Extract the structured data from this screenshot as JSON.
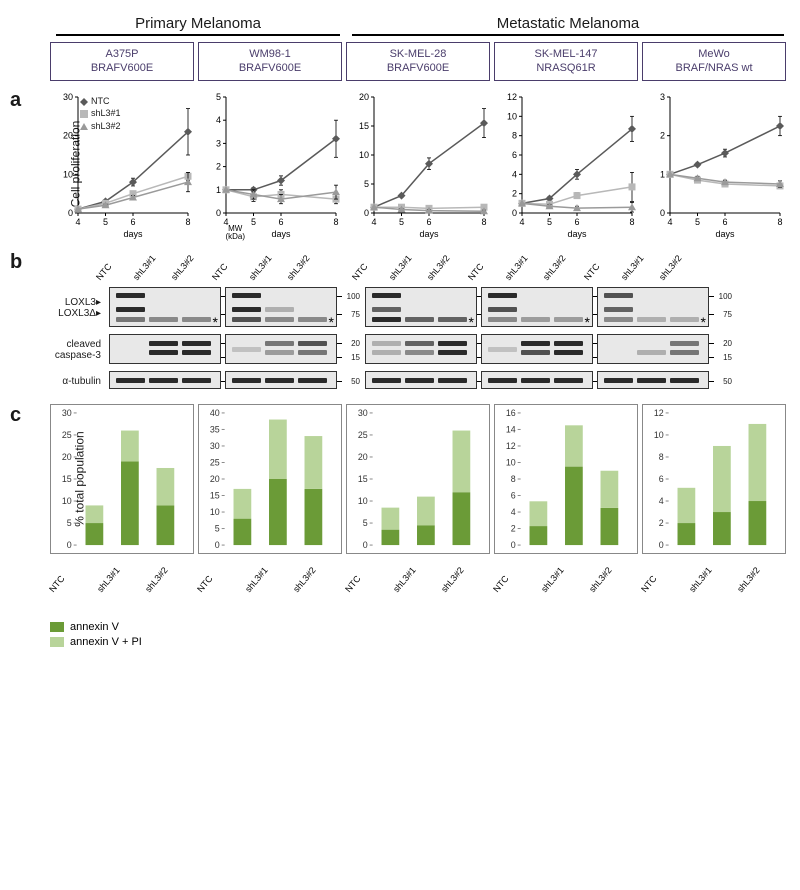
{
  "headers": {
    "primary": "Primary Melanoma",
    "metastatic": "Metastatic  Melanoma"
  },
  "cell_lines": [
    {
      "name": "A375P",
      "mutation": "BRAFV600E"
    },
    {
      "name": "WM98-1",
      "mutation": "BRAFV600E"
    },
    {
      "name": "SK-MEL-28",
      "mutation": "BRAFV600E"
    },
    {
      "name": "SK-MEL-147",
      "mutation": "NRASQ61R"
    },
    {
      "name": "MeWo",
      "mutation": "BRAF/NRAS wt"
    }
  ],
  "panel_a": {
    "label": "a",
    "ylabel": "Cell proliferation",
    "xlabel": "days",
    "legend": [
      {
        "label": "NTC",
        "marker": "diamond",
        "color": "#5a5a5a"
      },
      {
        "label": "shL3#1",
        "marker": "square",
        "color": "#b8b8b8"
      },
      {
        "label": "shL3#2",
        "marker": "triangle",
        "color": "#9a9a9a"
      }
    ],
    "x_values": [
      4,
      5,
      6,
      8
    ],
    "charts": [
      {
        "ylim": [
          0,
          30
        ],
        "yticks": [
          0,
          10,
          20,
          30
        ],
        "series": [
          {
            "color": "#5a5a5a",
            "marker": "diamond",
            "y": [
              1,
              3,
              8,
              21
            ],
            "err": [
              0,
              0.5,
              1,
              6
            ]
          },
          {
            "color": "#b8b8b8",
            "marker": "square",
            "y": [
              1,
              2.5,
              5,
              9.5
            ],
            "err": [
              0,
              0.3,
              0.5,
              1
            ]
          },
          {
            "color": "#9a9a9a",
            "marker": "triangle",
            "y": [
              1,
              2,
              4,
              8
            ],
            "err": [
              0,
              0.3,
              0.5,
              2.5
            ]
          }
        ]
      },
      {
        "ylim": [
          0,
          5
        ],
        "yticks": [
          0,
          1,
          2,
          3,
          4,
          5
        ],
        "series": [
          {
            "color": "#5a5a5a",
            "marker": "diamond",
            "y": [
              1,
              1,
              1.4,
              3.2
            ],
            "err": [
              0,
              0.1,
              0.2,
              0.8
            ]
          },
          {
            "color": "#b8b8b8",
            "marker": "square",
            "y": [
              1,
              0.7,
              0.8,
              0.6
            ],
            "err": [
              0,
              0.2,
              0.2,
              0.2
            ]
          },
          {
            "color": "#9a9a9a",
            "marker": "triangle",
            "y": [
              1,
              0.8,
              0.6,
              0.9
            ],
            "err": [
              0,
              0.2,
              0.2,
              0.3
            ]
          }
        ]
      },
      {
        "ylim": [
          0,
          20
        ],
        "yticks": [
          0,
          5,
          10,
          15,
          20
        ],
        "series": [
          {
            "color": "#5a5a5a",
            "marker": "diamond",
            "y": [
              1,
              3,
              8.5,
              15.5
            ],
            "err": [
              0,
              0.3,
              1,
              2.5
            ]
          },
          {
            "color": "#b8b8b8",
            "marker": "square",
            "y": [
              1,
              1,
              0.8,
              1
            ],
            "err": [
              0,
              0.2,
              0.2,
              0.3
            ]
          },
          {
            "color": "#9a9a9a",
            "marker": "triangle",
            "y": [
              1,
              0.6,
              0.4,
              0.3
            ],
            "err": [
              0,
              0.2,
              0.2,
              0.2
            ]
          }
        ]
      },
      {
        "ylim": [
          0,
          12
        ],
        "yticks": [
          0,
          2,
          4,
          6,
          8,
          10,
          12
        ],
        "series": [
          {
            "color": "#5a5a5a",
            "marker": "diamond",
            "y": [
              1,
              1.5,
              4,
              8.7
            ],
            "err": [
              0,
              0.2,
              0.5,
              1.3
            ]
          },
          {
            "color": "#b8b8b8",
            "marker": "square",
            "y": [
              1,
              0.9,
              1.8,
              2.7
            ],
            "err": [
              0,
              0.2,
              0.3,
              1.5
            ]
          },
          {
            "color": "#9a9a9a",
            "marker": "triangle",
            "y": [
              1,
              0.7,
              0.5,
              0.6
            ],
            "err": [
              0,
              0.2,
              0.2,
              0.5
            ]
          }
        ]
      },
      {
        "ylim": [
          0,
          3
        ],
        "yticks": [
          0,
          1,
          2,
          3
        ],
        "series": [
          {
            "color": "#5a5a5a",
            "marker": "diamond",
            "y": [
              1,
              1.25,
              1.55,
              2.25
            ],
            "err": [
              0,
              0.05,
              0.1,
              0.25
            ]
          },
          {
            "color": "#b8b8b8",
            "marker": "square",
            "y": [
              1,
              0.85,
              0.75,
              0.7
            ],
            "err": [
              0,
              0.05,
              0.05,
              0.05
            ]
          },
          {
            "color": "#9a9a9a",
            "marker": "triangle",
            "y": [
              1,
              0.9,
              0.8,
              0.75
            ],
            "err": [
              0,
              0.05,
              0.05,
              0.08
            ]
          }
        ]
      }
    ]
  },
  "panel_b": {
    "label": "b",
    "lane_labels": [
      "NTC",
      "shL3#1",
      "shL3#2"
    ],
    "mw_title": "MW\n(kDa)",
    "proteins": [
      {
        "label": "LOXL3▸\nLOXL3Δ▸",
        "height": 40,
        "mw": [
          "100",
          "75"
        ],
        "mw_pos": [
          8,
          26
        ]
      },
      {
        "label": "cleaved\ncaspase-3",
        "height": 30,
        "mw": [
          "20",
          "15"
        ],
        "mw_pos": [
          8,
          22
        ]
      },
      {
        "label": "α-tubulin",
        "height": 18,
        "mw": [
          "50"
        ],
        "mw_pos": [
          9
        ]
      }
    ],
    "asterisk": "*",
    "blots": [
      {
        "loxl3": [
          {
            "l": 0,
            "h": 0.2,
            "i": 1
          },
          {
            "l": 0,
            "h": 0.55,
            "i": 1
          },
          {
            "l": 0,
            "h": 0.82,
            "i": 0.6
          },
          {
            "l": 1,
            "h": 0.82,
            "i": 0.5
          },
          {
            "l": 2,
            "h": 0.82,
            "i": 0.5
          }
        ],
        "casp3": [
          {
            "l": 1,
            "h": 0.3,
            "i": 1
          },
          {
            "l": 1,
            "h": 0.6,
            "i": 1
          },
          {
            "l": 2,
            "h": 0.3,
            "i": 1
          },
          {
            "l": 2,
            "h": 0.6,
            "i": 1
          }
        ],
        "tub": [
          {
            "l": 0,
            "h": 0.5,
            "i": 1
          },
          {
            "l": 1,
            "h": 0.5,
            "i": 1
          },
          {
            "l": 2,
            "h": 0.5,
            "i": 1
          }
        ]
      },
      {
        "loxl3": [
          {
            "l": 0,
            "h": 0.2,
            "i": 1
          },
          {
            "l": 0,
            "h": 0.55,
            "i": 1
          },
          {
            "l": 0,
            "h": 0.82,
            "i": 0.8
          },
          {
            "l": 1,
            "h": 0.55,
            "i": 0.3
          },
          {
            "l": 1,
            "h": 0.82,
            "i": 0.5
          },
          {
            "l": 2,
            "h": 0.82,
            "i": 0.5
          }
        ],
        "casp3": [
          {
            "l": 0,
            "h": 0.5,
            "i": 0.2
          },
          {
            "l": 1,
            "h": 0.3,
            "i": 0.6
          },
          {
            "l": 1,
            "h": 0.6,
            "i": 0.4
          },
          {
            "l": 2,
            "h": 0.3,
            "i": 0.8
          },
          {
            "l": 2,
            "h": 0.6,
            "i": 0.6
          }
        ],
        "tub": [
          {
            "l": 0,
            "h": 0.5,
            "i": 1
          },
          {
            "l": 1,
            "h": 0.5,
            "i": 1
          },
          {
            "l": 2,
            "h": 0.5,
            "i": 1
          }
        ]
      },
      {
        "loxl3": [
          {
            "l": 0,
            "h": 0.2,
            "i": 1
          },
          {
            "l": 0,
            "h": 0.55,
            "i": 0.7
          },
          {
            "l": 0,
            "h": 0.82,
            "i": 1
          },
          {
            "l": 1,
            "h": 0.82,
            "i": 0.7
          },
          {
            "l": 2,
            "h": 0.82,
            "i": 0.7
          }
        ],
        "casp3": [
          {
            "l": 0,
            "h": 0.3,
            "i": 0.3
          },
          {
            "l": 0,
            "h": 0.6,
            "i": 0.3
          },
          {
            "l": 1,
            "h": 0.3,
            "i": 0.7
          },
          {
            "l": 1,
            "h": 0.6,
            "i": 0.5
          },
          {
            "l": 2,
            "h": 0.3,
            "i": 1
          },
          {
            "l": 2,
            "h": 0.6,
            "i": 1
          }
        ],
        "tub": [
          {
            "l": 0,
            "h": 0.5,
            "i": 1
          },
          {
            "l": 1,
            "h": 0.5,
            "i": 1
          },
          {
            "l": 2,
            "h": 0.5,
            "i": 1
          }
        ]
      },
      {
        "loxl3": [
          {
            "l": 0,
            "h": 0.2,
            "i": 1
          },
          {
            "l": 0,
            "h": 0.55,
            "i": 0.8
          },
          {
            "l": 0,
            "h": 0.82,
            "i": 0.5
          },
          {
            "l": 1,
            "h": 0.82,
            "i": 0.4
          },
          {
            "l": 2,
            "h": 0.82,
            "i": 0.4
          }
        ],
        "casp3": [
          {
            "l": 0,
            "h": 0.5,
            "i": 0.2
          },
          {
            "l": 1,
            "h": 0.3,
            "i": 1
          },
          {
            "l": 1,
            "h": 0.6,
            "i": 0.8
          },
          {
            "l": 2,
            "h": 0.3,
            "i": 1
          },
          {
            "l": 2,
            "h": 0.6,
            "i": 1
          }
        ],
        "tub": [
          {
            "l": 0,
            "h": 0.5,
            "i": 1
          },
          {
            "l": 1,
            "h": 0.5,
            "i": 1
          },
          {
            "l": 2,
            "h": 0.5,
            "i": 1
          }
        ]
      },
      {
        "loxl3": [
          {
            "l": 0,
            "h": 0.2,
            "i": 0.8
          },
          {
            "l": 0,
            "h": 0.55,
            "i": 0.7
          },
          {
            "l": 0,
            "h": 0.82,
            "i": 0.5
          },
          {
            "l": 1,
            "h": 0.82,
            "i": 0.3
          },
          {
            "l": 2,
            "h": 0.82,
            "i": 0.3
          }
        ],
        "casp3": [
          {
            "l": 1,
            "h": 0.6,
            "i": 0.3
          },
          {
            "l": 2,
            "h": 0.3,
            "i": 0.6
          },
          {
            "l": 2,
            "h": 0.6,
            "i": 0.6
          }
        ],
        "tub": [
          {
            "l": 0,
            "h": 0.5,
            "i": 1
          },
          {
            "l": 1,
            "h": 0.5,
            "i": 1
          },
          {
            "l": 2,
            "h": 0.5,
            "i": 1
          }
        ]
      }
    ]
  },
  "panel_c": {
    "label": "c",
    "ylabel": "% total population",
    "categories": [
      "NTC",
      "shL3#1",
      "shL3#2"
    ],
    "legend": [
      {
        "label": "annexin V",
        "color": "#6b9b37"
      },
      {
        "label": "annexin V + PI",
        "color": "#b8d49a"
      }
    ],
    "charts": [
      {
        "ylim": [
          0,
          30
        ],
        "yticks": [
          0,
          5,
          10,
          15,
          20,
          25,
          30
        ],
        "data": [
          [
            5,
            4
          ],
          [
            19,
            7
          ],
          [
            9,
            8.5
          ]
        ]
      },
      {
        "ylim": [
          0,
          40
        ],
        "yticks": [
          0,
          5,
          10,
          15,
          20,
          25,
          30,
          35,
          40
        ],
        "data": [
          [
            8,
            9
          ],
          [
            20,
            18
          ],
          [
            17,
            16
          ]
        ]
      },
      {
        "ylim": [
          0,
          30
        ],
        "yticks": [
          0,
          5,
          10,
          15,
          20,
          25,
          30
        ],
        "data": [
          [
            3.5,
            5
          ],
          [
            4.5,
            6.5
          ],
          [
            12,
            14
          ]
        ]
      },
      {
        "ylim": [
          0,
          16
        ],
        "yticks": [
          0,
          2,
          4,
          6,
          8,
          10,
          12,
          14,
          16
        ],
        "data": [
          [
            2.3,
            3
          ],
          [
            9.5,
            5
          ],
          [
            4.5,
            4.5
          ]
        ]
      },
      {
        "ylim": [
          0,
          12
        ],
        "yticks": [
          0,
          2,
          4,
          6,
          8,
          10,
          12
        ],
        "data": [
          [
            2,
            3.2
          ],
          [
            3,
            6
          ],
          [
            4,
            7
          ]
        ]
      }
    ]
  }
}
